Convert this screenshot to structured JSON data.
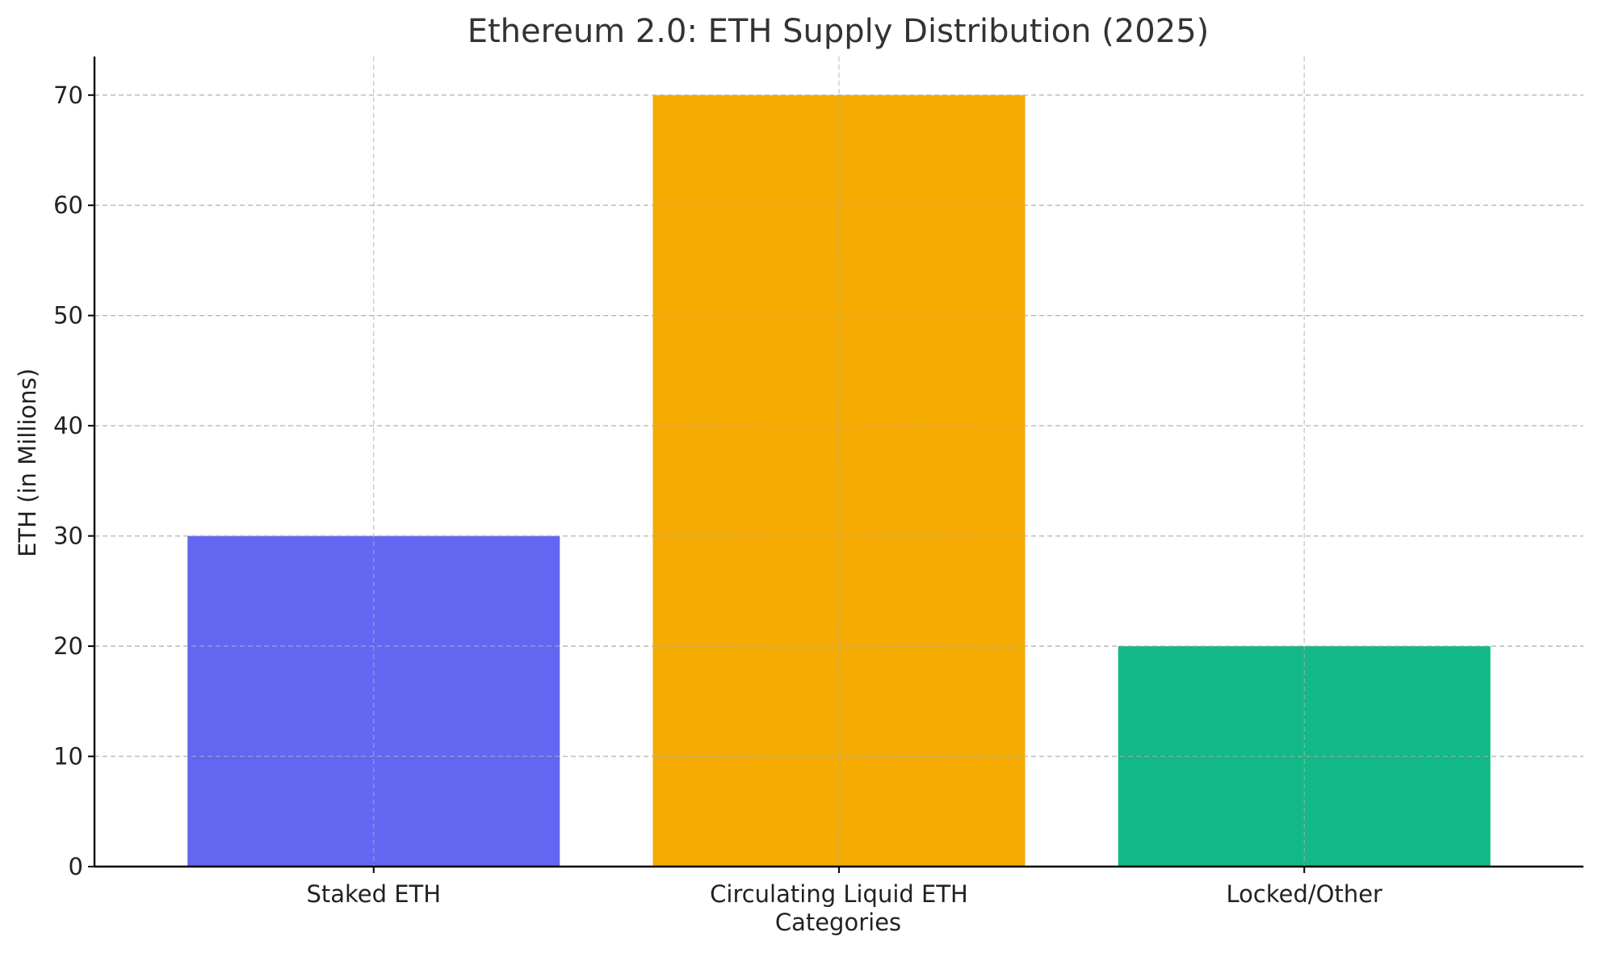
{
  "chart_data": {
    "type": "bar",
    "title": "Ethereum 2.0: ETH Supply Distribution (2025)",
    "xlabel": "Categories",
    "ylabel": "ETH (in Millions)",
    "categories": [
      "Staked ETH",
      "Circulating Liquid ETH",
      "Locked/Other"
    ],
    "values": [
      30,
      70,
      20
    ],
    "colors": [
      "#6366f1",
      "#f4aa00",
      "#12b886"
    ],
    "ylim": [
      0,
      73.5
    ],
    "yticks": [
      0,
      10,
      20,
      30,
      40,
      50,
      60,
      70
    ],
    "grid": true,
    "legend": "none"
  }
}
